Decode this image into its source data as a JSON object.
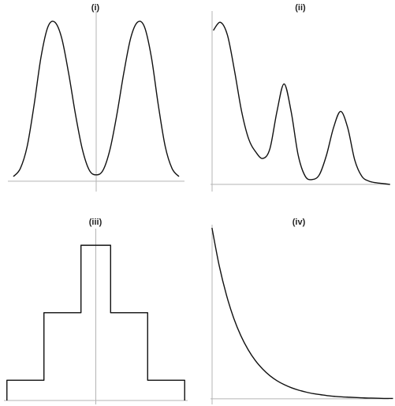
{
  "chart_data": [
    {
      "type": "line",
      "title": "(i)",
      "x": [
        -3,
        -2.75,
        -2.5,
        -2.25,
        -2,
        -1.75,
        -1.5,
        -1.25,
        -1,
        -0.75,
        -0.5,
        -0.25,
        0,
        0.25,
        0.5,
        0.75,
        1,
        1.25,
        1.5,
        1.75,
        2,
        2.25,
        2.5,
        2.75,
        3
      ],
      "series": [
        {
          "values": [
            0.03,
            0.08,
            0.22,
            0.48,
            0.78,
            0.97,
            1.0,
            0.9,
            0.68,
            0.42,
            0.2,
            0.07,
            0.04,
            0.07,
            0.2,
            0.42,
            0.68,
            0.9,
            1.0,
            0.97,
            0.78,
            0.48,
            0.22,
            0.08,
            0.03
          ]
        }
      ],
      "xlim": [
        -3.2,
        3.2
      ],
      "ylim": [
        -0.04,
        1.05
      ],
      "grid": false
    },
    {
      "type": "line",
      "title": "(ii)",
      "x": [
        0,
        0.25,
        0.5,
        0.75,
        1,
        1.25,
        1.5,
        1.75,
        2,
        2.25,
        2.5,
        2.75,
        3,
        3.25,
        3.5,
        3.75,
        4,
        4.25,
        4.5,
        4.75,
        5,
        5.25,
        5.5,
        5.75,
        6,
        6.25
      ],
      "series": [
        {
          "values": [
            0.95,
            1.0,
            0.92,
            0.7,
            0.45,
            0.28,
            0.2,
            0.16,
            0.22,
            0.45,
            0.62,
            0.45,
            0.18,
            0.05,
            0.03,
            0.06,
            0.18,
            0.35,
            0.45,
            0.35,
            0.15,
            0.05,
            0.02,
            0.01,
            0.005,
            0.0
          ]
        }
      ],
      "xlim": [
        -0.1,
        6.2
      ],
      "ylim": [
        -0.02,
        1.05
      ],
      "grid": false
    },
    {
      "type": "line",
      "title": "(iii)",
      "x": [
        -3,
        -3,
        -1.75,
        -1.75,
        -0.5,
        -0.5,
        0.5,
        0.5,
        1.75,
        1.75,
        3,
        3
      ],
      "series": [
        {
          "values": [
            0,
            0.12,
            0.12,
            0.52,
            0.52,
            0.92,
            0.92,
            0.52,
            0.52,
            0.12,
            0.12,
            0
          ]
        }
      ],
      "xlim": [
        -3.1,
        3.1
      ],
      "ylim": [
        0,
        1.0
      ],
      "grid": false
    },
    {
      "type": "line",
      "title": "(iv)",
      "x": [
        0,
        0.25,
        0.5,
        0.75,
        1,
        1.25,
        1.5,
        1.75,
        2,
        2.25,
        2.5,
        2.75,
        3,
        3.25,
        3.5,
        3.75,
        4,
        4.25,
        4.5,
        4.75,
        5,
        5.25,
        5.5,
        5.75,
        6,
        6.25
      ],
      "series": [
        {
          "values": [
            1.0,
            0.779,
            0.607,
            0.472,
            0.368,
            0.287,
            0.223,
            0.174,
            0.135,
            0.105,
            0.082,
            0.064,
            0.05,
            0.039,
            0.03,
            0.024,
            0.018,
            0.014,
            0.011,
            0.009,
            0.007,
            0.005,
            0.004,
            0.003,
            0.002,
            0.002
          ]
        }
      ],
      "xlim": [
        -0.05,
        6.1
      ],
      "ylim": [
        -0.01,
        1.0
      ],
      "grid": false
    }
  ]
}
